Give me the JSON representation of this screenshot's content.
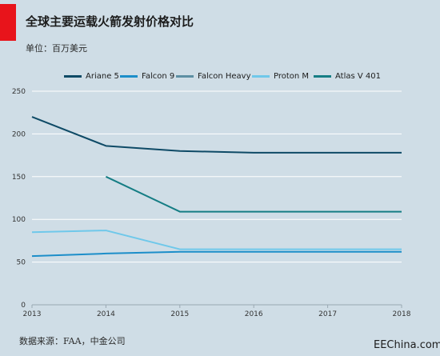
{
  "header": {
    "title": "全球主要运载火箭发射价格对比",
    "subtitle": "单位：百万美元"
  },
  "footer": {
    "source": "数据来源：FAA，中金公司",
    "watermark": "EEChina.com"
  },
  "colors": {
    "accent": "#e8141b",
    "background": "#cfdde6"
  },
  "chart_data": {
    "type": "line",
    "title": "全球主要运载火箭发射价格对比",
    "subtitle": "单位：百万美元",
    "xlabel": "",
    "ylabel": "",
    "x": [
      2013,
      2014,
      2015,
      2016,
      2017,
      2018
    ],
    "xlim": [
      2013,
      2018
    ],
    "ylim": [
      0,
      250
    ],
    "yticks": [
      0,
      50,
      100,
      150,
      200,
      250
    ],
    "grid": true,
    "legend_position": "top",
    "series": [
      {
        "name": "Ariane 5",
        "color": "#0e4a66",
        "values": [
          220,
          186,
          180,
          178,
          178,
          178
        ]
      },
      {
        "name": "Falcon 9",
        "color": "#1c8ec9",
        "values": [
          57,
          60,
          62,
          62,
          62,
          62
        ]
      },
      {
        "name": "Falcon Heavy",
        "color": "#5d8fa3",
        "values": [
          null,
          null,
          null,
          null,
          null,
          null
        ]
      },
      {
        "name": "Proton M",
        "color": "#6fc8ea",
        "values": [
          85,
          87,
          65,
          65,
          65,
          65
        ]
      },
      {
        "name": "Atlas V 401",
        "color": "#157d84",
        "values": [
          null,
          150,
          109,
          109,
          109,
          109
        ]
      }
    ]
  }
}
